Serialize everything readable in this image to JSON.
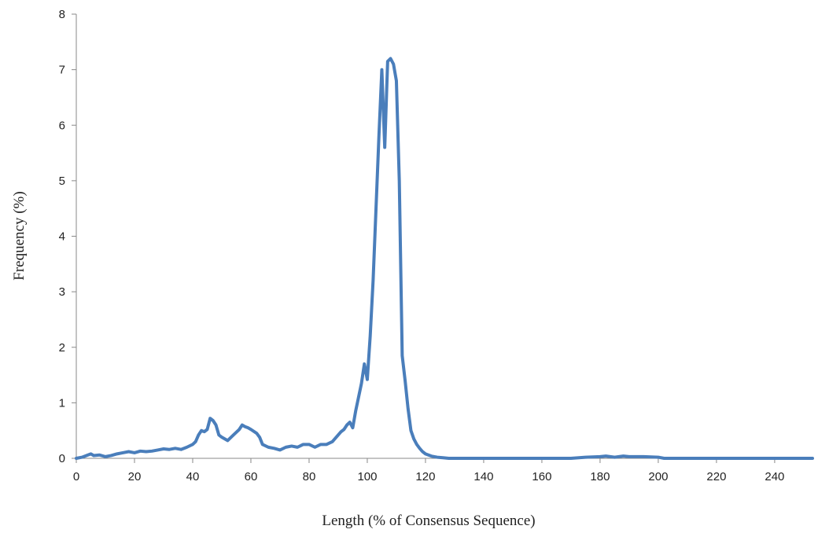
{
  "chart_data": {
    "type": "line",
    "title": "",
    "xlabel": "Length (% of Consensus Sequence)",
    "ylabel": "Frequency (%)",
    "xlim": [
      0,
      253
    ],
    "ylim": [
      0,
      8
    ],
    "x_ticks": [
      0,
      20,
      40,
      60,
      80,
      100,
      120,
      140,
      160,
      180,
      200,
      220,
      240
    ],
    "y_ticks": [
      0,
      1,
      2,
      3,
      4,
      5,
      6,
      7,
      8
    ],
    "grid": false,
    "legend": "none",
    "series": [
      {
        "color": "#4a7ebb",
        "x": [
          0,
          2,
          4,
          5,
          6,
          8,
          10,
          12,
          14,
          16,
          18,
          20,
          22,
          24,
          26,
          28,
          30,
          32,
          34,
          36,
          38,
          40,
          41,
          42,
          43,
          44,
          45,
          46,
          47,
          48,
          49,
          50,
          51,
          52,
          54,
          56,
          57,
          58,
          59,
          60,
          62,
          63,
          64,
          66,
          68,
          70,
          72,
          74,
          76,
          78,
          80,
          82,
          84,
          86,
          88,
          90,
          91,
          92,
          93,
          94,
          95,
          96,
          97,
          98,
          99,
          100,
          101,
          102,
          103,
          104,
          105,
          106,
          107,
          108,
          109,
          110,
          111,
          112,
          113,
          114,
          115,
          116,
          117,
          118,
          119,
          120,
          121,
          122,
          124,
          126,
          128,
          130,
          140,
          150,
          160,
          170,
          175,
          180,
          182,
          185,
          188,
          190,
          195,
          200,
          202,
          210,
          220,
          230,
          240,
          250,
          253
        ],
        "y": [
          0,
          0.02,
          0.06,
          0.08,
          0.05,
          0.06,
          0.03,
          0.05,
          0.08,
          0.1,
          0.12,
          0.1,
          0.13,
          0.12,
          0.13,
          0.15,
          0.17,
          0.16,
          0.18,
          0.16,
          0.2,
          0.25,
          0.3,
          0.42,
          0.5,
          0.48,
          0.52,
          0.72,
          0.68,
          0.6,
          0.42,
          0.38,
          0.35,
          0.32,
          0.42,
          0.52,
          0.6,
          0.57,
          0.55,
          0.52,
          0.45,
          0.38,
          0.25,
          0.2,
          0.18,
          0.15,
          0.2,
          0.22,
          0.2,
          0.25,
          0.25,
          0.2,
          0.25,
          0.25,
          0.3,
          0.42,
          0.48,
          0.52,
          0.6,
          0.65,
          0.55,
          0.85,
          1.1,
          1.35,
          1.7,
          1.42,
          2.2,
          3.2,
          4.5,
          5.8,
          7.0,
          5.6,
          7.15,
          7.2,
          7.1,
          6.8,
          5.0,
          1.85,
          1.4,
          0.9,
          0.5,
          0.35,
          0.25,
          0.18,
          0.12,
          0.08,
          0.06,
          0.04,
          0.02,
          0.01,
          0.0,
          0.0,
          0.0,
          0.0,
          0.0,
          0.0,
          0.02,
          0.03,
          0.04,
          0.02,
          0.04,
          0.03,
          0.03,
          0.02,
          0.0,
          0.0,
          0.0,
          0.0,
          0.0,
          0.0,
          0.0
        ]
      }
    ]
  }
}
